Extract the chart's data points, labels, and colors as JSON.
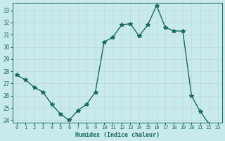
{
  "x": [
    0,
    1,
    2,
    3,
    4,
    5,
    6,
    7,
    8,
    9,
    10,
    11,
    12,
    13,
    14,
    15,
    16,
    17,
    18,
    19,
    20,
    21,
    22,
    23
  ],
  "y": [
    27.7,
    27.3,
    26.7,
    26.3,
    25.3,
    24.5,
    24.0,
    24.8,
    25.3,
    26.3,
    30.4,
    30.8,
    31.8,
    31.9,
    30.9,
    31.8,
    33.4,
    31.6,
    31.3,
    31.3,
    26.0,
    24.7,
    23.7,
    23.5
  ],
  "line_color": "#1a6b5a",
  "marker": "*",
  "marker_size": 4,
  "bg_color": "#c8eaea",
  "grid_color": "#c0d8d8",
  "xlabel": "Humidex (Indice chaleur)",
  "ylim_min": 23.8,
  "ylim_max": 33.6,
  "yticks": [
    24,
    25,
    26,
    27,
    28,
    29,
    30,
    31,
    32,
    33
  ],
  "xlim_min": -0.5,
  "xlim_max": 23.5,
  "xticks": [
    0,
    1,
    2,
    3,
    4,
    5,
    6,
    7,
    8,
    9,
    10,
    11,
    12,
    13,
    14,
    15,
    16,
    17,
    18,
    19,
    20,
    21,
    22,
    23
  ]
}
